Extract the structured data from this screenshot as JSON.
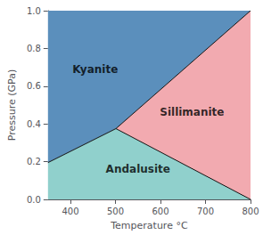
{
  "chart_data": {
    "type": "polygon",
    "xlabel": "Temperature °C",
    "ylabel": "Pressure (GPa)",
    "xlim": [
      350,
      800
    ],
    "ylim": [
      0,
      1.0
    ],
    "xticks": [
      400,
      500,
      600,
      700,
      800
    ],
    "yticks": [
      {
        "value": 0,
        "label": "0.0"
      },
      0.2,
      0.4,
      0.6,
      0.8,
      {
        "value": 1.0,
        "label": "1.0"
      }
    ],
    "grid": false,
    "regions": [
      {
        "color": "#5b8fbc",
        "x": [
          350,
          350,
          501,
          800,
          350
        ],
        "y": [
          0,
          0.195,
          0.375,
          1.0,
          1.0
        ]
      },
      {
        "color": "#90d0cc",
        "x": [
          350,
          350,
          501,
          800
        ],
        "y": [
          0,
          0.195,
          0.375,
          0.0
        ]
      },
      {
        "color": "#f2aab0",
        "x": [
          501,
          800,
          800
        ],
        "y": [
          0.375,
          1.0,
          0.0
        ]
      }
    ],
    "boundaries": {
      "color": "#111111",
      "lines": [
        {
          "x": [
            350,
            501
          ],
          "y": [
            0.195,
            0.375
          ]
        },
        {
          "x": [
            501,
            800
          ],
          "y": [
            0.375,
            1.0
          ]
        },
        {
          "x": [
            501,
            800
          ],
          "y": [
            0.375,
            0.0
          ]
        }
      ]
    },
    "annotations": [
      {
        "text": "Kyanite",
        "x": 455,
        "y": 0.69
      },
      {
        "text": "Sillimanite",
        "x": 670,
        "y": 0.46
      },
      {
        "text": "Andalusite",
        "x": 550,
        "y": 0.16
      }
    ]
  }
}
